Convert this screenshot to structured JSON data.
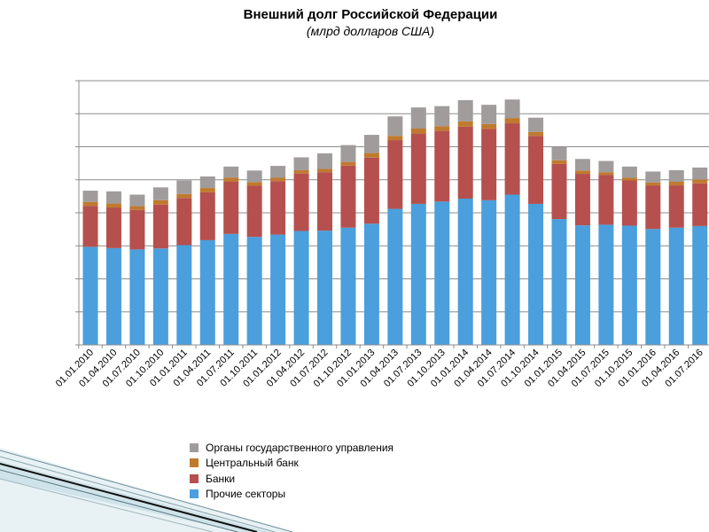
{
  "chart_data": {
    "type": "bar",
    "stacked": true,
    "title": "Внешний долг Российской Федерации",
    "subtitle": "(млрд долларов США)",
    "xlabel": "",
    "ylabel": "",
    "ylim": [
      0,
      800
    ],
    "grid": true,
    "legend_position": "bottom-center",
    "categories": [
      "01.01.2010",
      "01.04.2010",
      "01.07.2010",
      "01.10.2010",
      "01.01.2011",
      "01.04.2011",
      "01.07.2011",
      "01.10.2011",
      "01.01.2012",
      "01.04.2012",
      "01.07.2012",
      "01.10.2012",
      "01.01.2013",
      "01.04.2013",
      "01.07.2013",
      "01.10.2013",
      "01.01.2014",
      "01.04.2014",
      "01.07.2014",
      "01.10.2014",
      "01.01.2015",
      "01.04.2015",
      "01.07.2015",
      "01.10.2015",
      "01.01.2016",
      "01.04.2016",
      "01.07.2016"
    ],
    "series": [
      {
        "name": "Прочие секторы",
        "color": "#4a9fdc",
        "values": [
          297,
          293,
          289,
          292,
          302,
          317,
          336,
          327,
          334,
          345,
          346,
          355,
          367,
          412,
          427,
          434,
          443,
          438,
          455,
          427,
          381,
          362,
          364,
          361,
          351,
          355,
          360
        ]
      },
      {
        "name": "Банки",
        "color": "#b5504e",
        "values": [
          124,
          123,
          120,
          133,
          143,
          145,
          158,
          155,
          162,
          174,
          177,
          188,
          200,
          208,
          213,
          214,
          218,
          216,
          216,
          206,
          167,
          156,
          151,
          137,
          132,
          128,
          129
        ]
      },
      {
        "name": "Центральный банк",
        "color": "#c07a2e",
        "values": [
          12,
          12,
          11,
          13,
          12,
          13,
          13,
          11,
          10,
          10,
          10,
          11,
          14,
          13,
          15,
          14,
          16,
          15,
          16,
          12,
          11,
          10,
          8,
          8,
          9,
          11,
          12
        ]
      },
      {
        "name": "Органы государственного управления",
        "color": "#a09c9c",
        "values": [
          34,
          37,
          35,
          39,
          41,
          35,
          33,
          35,
          36,
          39,
          47,
          51,
          55,
          59,
          64,
          61,
          64,
          58,
          56,
          43,
          40,
          35,
          34,
          34,
          33,
          35,
          36
        ]
      }
    ]
  },
  "legend": {
    "items": [
      {
        "label": "Органы государственного управления",
        "color": "#a09c9c"
      },
      {
        "label": "Центральный банк",
        "color": "#c07a2e"
      },
      {
        "label": "Банки",
        "color": "#b5504e"
      },
      {
        "label": "Прочие секторы",
        "color": "#4a9fdc"
      }
    ]
  }
}
